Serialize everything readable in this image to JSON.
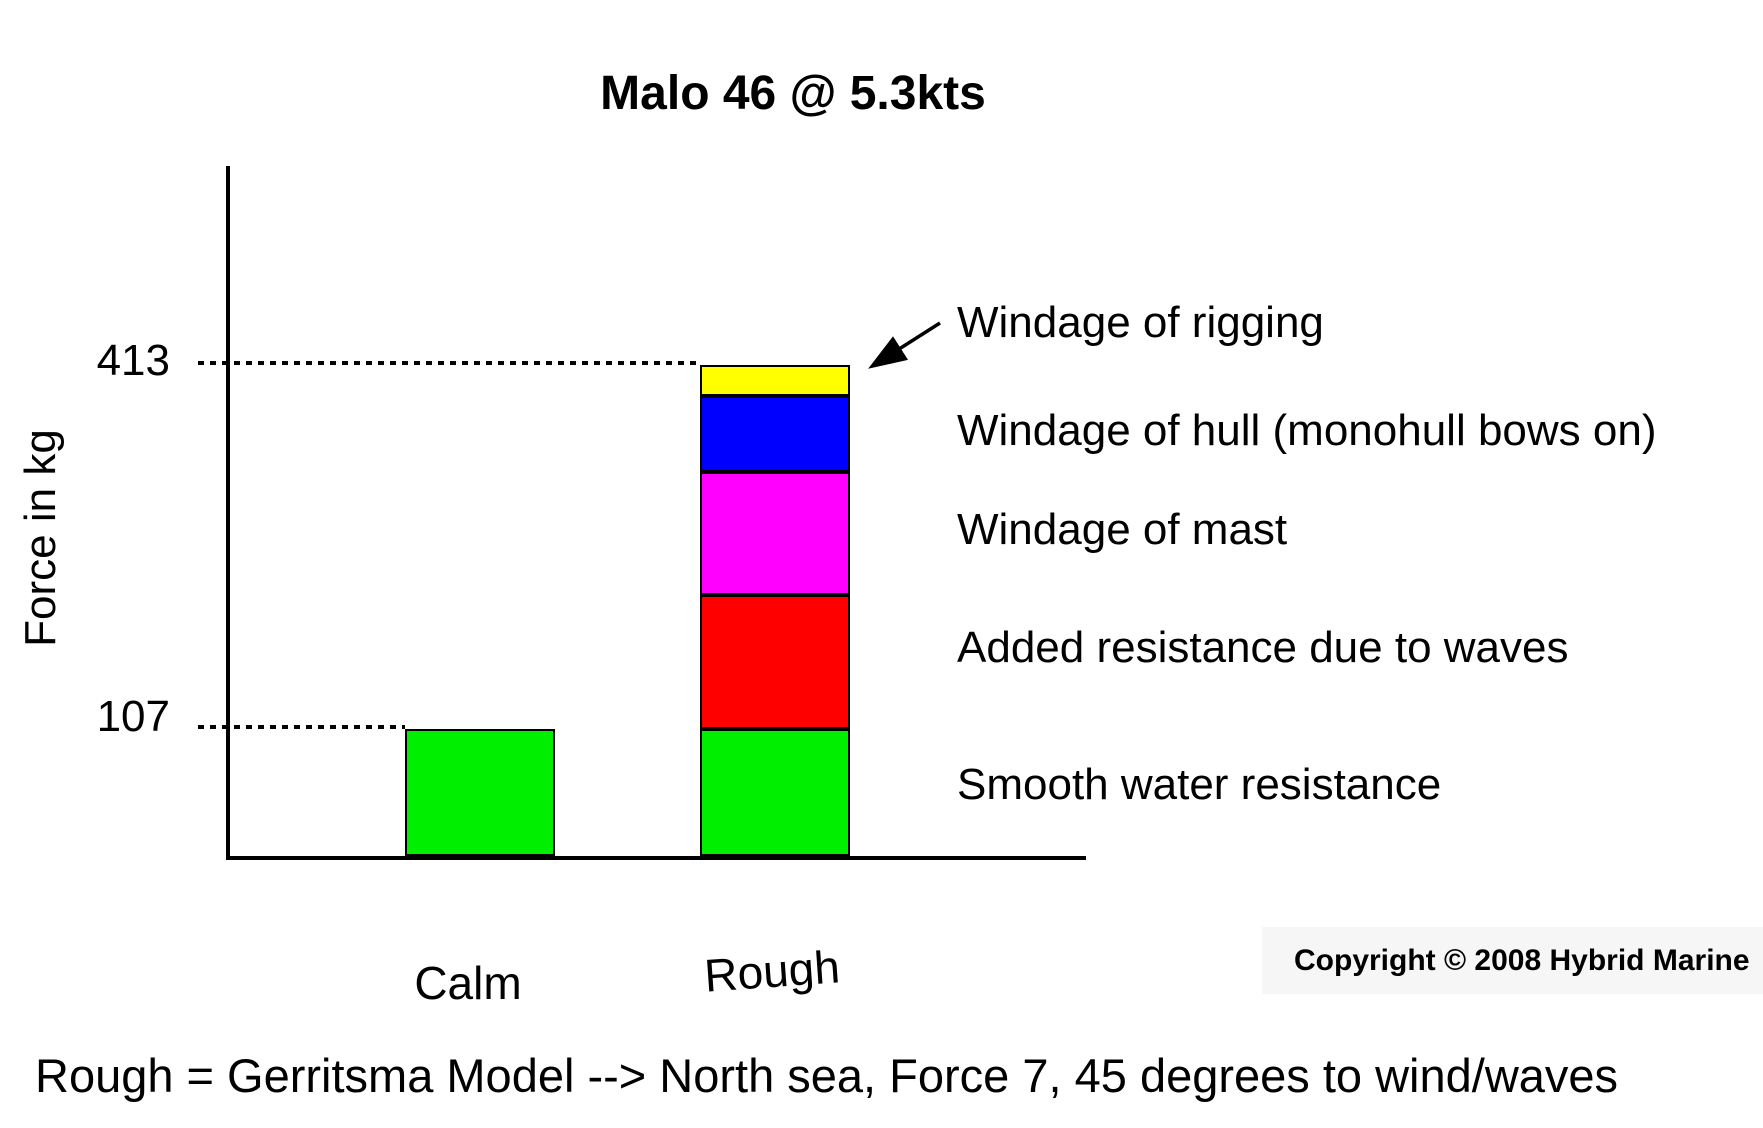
{
  "title": "Malo 46 @ 5.3kts",
  "y_axis": {
    "label": "Force in kg",
    "tick_top": "413",
    "tick_bottom": "107"
  },
  "x_labels": {
    "calm": "Calm",
    "rough": "Rough"
  },
  "legend": {
    "items": [
      {
        "label": "Windage of rigging"
      },
      {
        "label": "Windage of hull (monohull bows on)"
      },
      {
        "label": "Windage of mast"
      },
      {
        "label": "Added resistance due to waves"
      },
      {
        "label": "Smooth water resistance"
      }
    ]
  },
  "caption": "Rough = Gerritsma Model --> North sea, Force 7, 45 degrees to wind/waves",
  "copyright": "Copyright © 2008 Hybrid Marine",
  "colors": {
    "smooth_water": "#00ee00",
    "added_waves": "#ff0000",
    "mast": "#ff00ff",
    "hull": "#0000ff",
    "rigging": "#ffff00",
    "axis": "#000000",
    "copyright_bg": "#f6f6f6"
  },
  "chart_data": {
    "type": "bar",
    "stacked": true,
    "title": "Malo 46 @ 5.3kts",
    "ylabel": "Force in kg",
    "categories": [
      "Calm",
      "Rough"
    ],
    "series": [
      {
        "name": "Smooth water resistance",
        "color": "#00ee00",
        "values": [
          107,
          107
        ]
      },
      {
        "name": "Added resistance due to waves",
        "color": "#ff0000",
        "values": [
          0,
          113
        ]
      },
      {
        "name": "Windage of mast",
        "color": "#ff00ff",
        "values": [
          0,
          103
        ]
      },
      {
        "name": "Windage of hull (monohull bows on)",
        "color": "#0000ff",
        "values": [
          0,
          64
        ]
      },
      {
        "name": "Windage of rigging",
        "color": "#ffff00",
        "values": [
          0,
          26
        ]
      }
    ],
    "totals": {
      "Calm": 107,
      "Rough": 413
    },
    "annotated_values": [
      413,
      107
    ],
    "ylim": [
      0,
      580
    ],
    "grid": false,
    "legend_position": "right"
  }
}
